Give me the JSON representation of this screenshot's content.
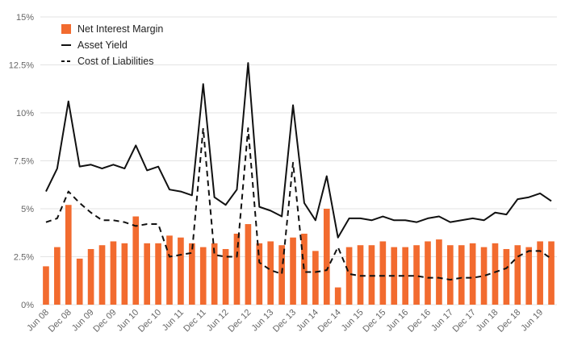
{
  "chart_data": {
    "type": "bar",
    "y_ticks": [
      "0%",
      "2.5%",
      "5%",
      "7.5%",
      "10%",
      "12.5%",
      "15%"
    ],
    "ylim": [
      0,
      15
    ],
    "grid": true,
    "legend_placement": "top-left",
    "x_tick_labels": [
      "Jun 08",
      "Dec 08",
      "Jun 09",
      "Dec 09",
      "Jun 10",
      "Dec 10",
      "Jun 11",
      "Dec 11",
      "Jun 12",
      "Dec 12",
      "Jun 13",
      "Dec 13",
      "Jun 14",
      "Dec 14",
      "Jun 15",
      "Dec 15",
      "Jun 16",
      "Dec 16",
      "Jun 17",
      "Dec 17",
      "Jun 18",
      "Dec 18",
      "Jun 19"
    ],
    "series": [
      {
        "name": "Net Interest Margin",
        "kind": "bar",
        "color": "#f26b2f",
        "values": [
          2.0,
          3.0,
          5.2,
          2.4,
          2.9,
          3.1,
          3.3,
          3.2,
          4.6,
          3.2,
          3.2,
          3.6,
          3.5,
          3.2,
          3.0,
          3.2,
          2.9,
          3.7,
          4.2,
          3.2,
          3.3,
          3.1,
          3.5,
          3.7,
          2.8,
          5.0,
          0.9,
          3.0,
          3.1,
          3.1,
          3.3,
          3.0,
          3.0,
          3.1,
          3.3,
          3.4,
          3.1,
          3.1,
          3.2,
          3.0,
          3.2,
          2.9,
          3.1,
          3.0,
          3.3,
          3.3
        ]
      },
      {
        "name": "Asset Yield",
        "kind": "line",
        "style": "solid",
        "color": "#111111",
        "values": [
          5.9,
          7.1,
          10.6,
          7.2,
          7.3,
          7.1,
          7.3,
          7.1,
          8.3,
          7.0,
          7.2,
          6.0,
          5.9,
          5.7,
          11.5,
          5.6,
          5.2,
          6.0,
          12.6,
          5.1,
          4.9,
          4.6,
          10.4,
          5.3,
          4.4,
          6.7,
          3.5,
          4.5,
          4.5,
          4.4,
          4.6,
          4.4,
          4.4,
          4.3,
          4.5,
          4.6,
          4.3,
          4.4,
          4.5,
          4.4,
          4.8,
          4.7,
          5.5,
          5.6,
          5.8,
          5.4
        ]
      },
      {
        "name": "Cost of Liabilities",
        "kind": "line",
        "style": "dashed",
        "color": "#111111",
        "values": [
          4.3,
          4.5,
          5.9,
          5.3,
          4.8,
          4.4,
          4.4,
          4.3,
          4.1,
          4.2,
          4.2,
          2.5,
          2.6,
          2.7,
          9.2,
          2.6,
          2.5,
          2.5,
          9.2,
          2.2,
          1.8,
          1.6,
          7.4,
          1.7,
          1.7,
          1.8,
          3.0,
          1.6,
          1.5,
          1.5,
          1.5,
          1.5,
          1.5,
          1.5,
          1.4,
          1.4,
          1.3,
          1.4,
          1.4,
          1.5,
          1.7,
          1.9,
          2.5,
          2.8,
          2.8,
          2.4
        ]
      }
    ]
  }
}
